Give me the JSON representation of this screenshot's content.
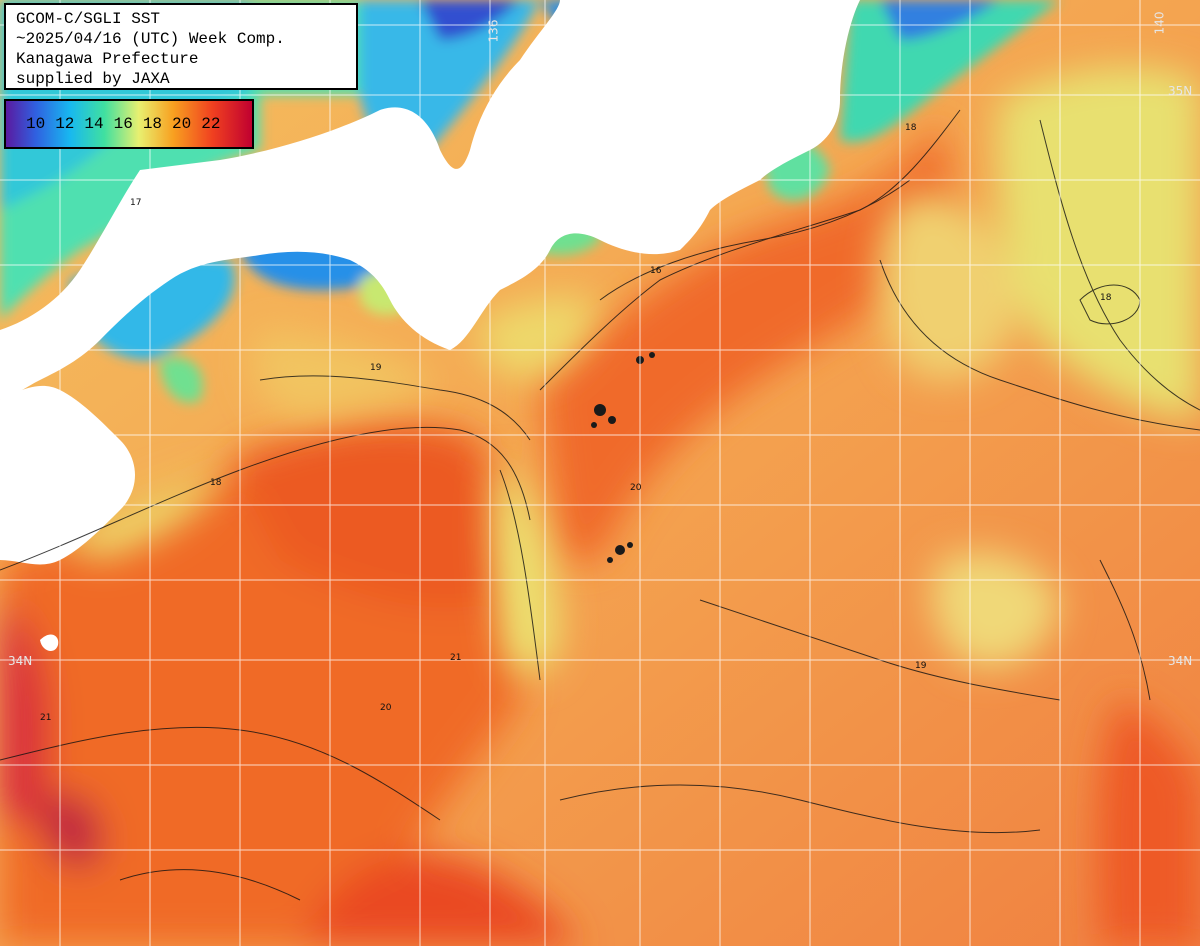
{
  "header": {
    "line1": "GCOM-C/SGLI SST",
    "line2": "~2025/04/16 (UTC) Week Comp.",
    "line3": "Kanagawa Prefecture",
    "line4": "supplied by JAXA"
  },
  "legend": {
    "ticks": [
      "10",
      "12",
      "14",
      "16",
      "18",
      "20",
      "22"
    ]
  },
  "grid_labels": {
    "lat_east_upper": "35N",
    "lat_east_lower": "34N",
    "lat_west_lower": "34N",
    "lon_top_left": "136",
    "lon_top_right": "140"
  },
  "contour_labels": [
    "18",
    "19",
    "20",
    "21",
    "16",
    "17"
  ],
  "colors": {
    "land": "#ffffff",
    "warm_water": "#f06a28",
    "mid_water": "#f4b050",
    "cool_water": "#e8e070",
    "cold_water": "#40d0c0",
    "grid": "#ffffff"
  }
}
